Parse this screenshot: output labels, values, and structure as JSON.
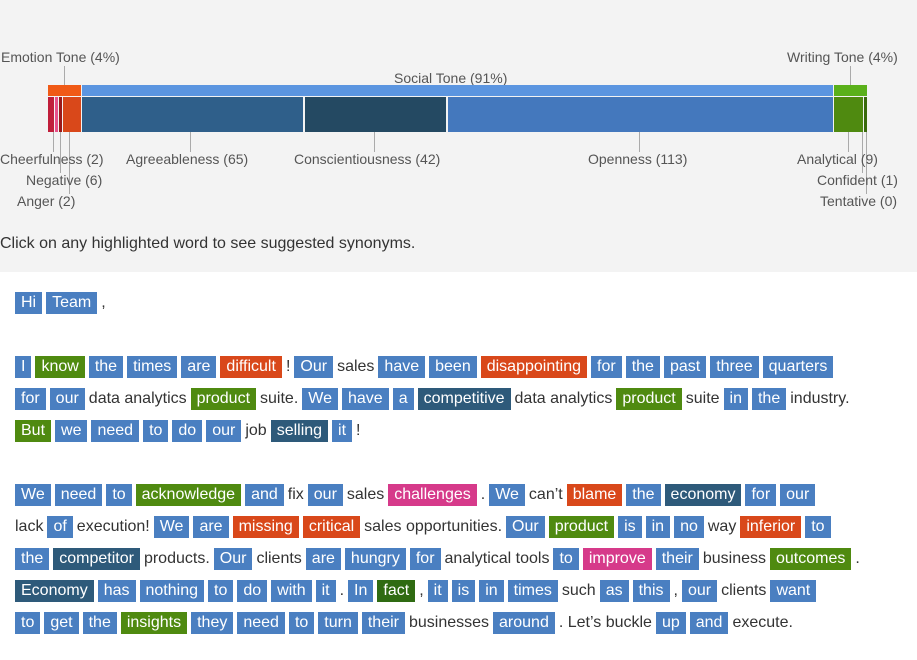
{
  "chart_data": {
    "type": "bar",
    "groups": [
      {
        "name": "Emotion Tone (4%)",
        "items": [
          {
            "label": "Cheerfulness (2)",
            "value": 2,
            "color": "#c01e3a"
          },
          {
            "label": "Negative (6)",
            "value": 6,
            "color": "#e8508a"
          },
          {
            "label": "Anger (2)",
            "value": 2,
            "color": "#9b1a1a"
          }
        ]
      },
      {
        "name": "Social Tone (91%)",
        "items": [
          {
            "label": "Agreeableness (65)",
            "value": 65,
            "color": "#2f5f8a"
          },
          {
            "label": "Conscientiousness (42)",
            "value": 42,
            "color": "#244962"
          },
          {
            "label": "Openness (113)",
            "value": 113,
            "color": "#4478bd"
          }
        ]
      },
      {
        "name": "Writing Tone (4%)",
        "items": [
          {
            "label": "Analytical (9)",
            "value": 9,
            "color": "#4f8a10"
          },
          {
            "label": "Confident (1)",
            "value": 1,
            "color": "#3a6a0c"
          },
          {
            "label": "Tentative (0)",
            "value": 0,
            "color": "#2f5a0a"
          }
        ]
      }
    ]
  },
  "hint": "Click on any highlighted word to see suggested synonyms.",
  "colors": {
    "b": "#4a7fc1",
    "g": "#4f8a10",
    "r": "#d9481a",
    "n": "#2e5a7a",
    "k": "#d63a8a",
    "dg": "#2f6b12"
  },
  "lines": [
    [
      [
        "Hi",
        "b"
      ],
      [
        "Team",
        "b"
      ],
      [
        ",",
        ""
      ]
    ],
    [
      [
        "I",
        "b"
      ],
      [
        "know",
        "g"
      ],
      [
        "the",
        "b"
      ],
      [
        "times",
        "b"
      ],
      [
        "are",
        "b"
      ],
      [
        "difficult",
        "r"
      ],
      [
        "!",
        ""
      ],
      [
        "Our",
        "b"
      ],
      [
        "sales",
        ""
      ],
      [
        "have",
        "b"
      ],
      [
        "been",
        "b"
      ],
      [
        "disappointing",
        "r"
      ],
      [
        "for",
        "b"
      ],
      [
        "the",
        "b"
      ],
      [
        "past",
        "b"
      ],
      [
        "three",
        "b"
      ],
      [
        "quarters",
        "b"
      ]
    ],
    [
      [
        "for",
        "b"
      ],
      [
        "our",
        "b"
      ],
      [
        "data analytics",
        ""
      ],
      [
        "product",
        "g"
      ],
      [
        "suite.",
        ""
      ],
      [
        "We",
        "b"
      ],
      [
        "have",
        "b"
      ],
      [
        "a",
        "b"
      ],
      [
        "competitive",
        "n"
      ],
      [
        "data analytics",
        ""
      ],
      [
        "product",
        "g"
      ],
      [
        "suite",
        ""
      ],
      [
        "in",
        "b"
      ],
      [
        "the",
        "b"
      ],
      [
        "industry.",
        ""
      ]
    ],
    [
      [
        "But",
        "g"
      ],
      [
        "we",
        "b"
      ],
      [
        "need",
        "b"
      ],
      [
        "to",
        "b"
      ],
      [
        "do",
        "b"
      ],
      [
        "our",
        "b"
      ],
      [
        "job",
        ""
      ],
      [
        "selling",
        "n"
      ],
      [
        "it",
        "b"
      ],
      [
        "!",
        ""
      ]
    ],
    [
      [
        "We",
        "b"
      ],
      [
        "need",
        "b"
      ],
      [
        "to",
        "b"
      ],
      [
        "acknowledge",
        "g"
      ],
      [
        "and",
        "b"
      ],
      [
        "fix",
        ""
      ],
      [
        "our",
        "b"
      ],
      [
        "sales",
        ""
      ],
      [
        "challenges",
        "k"
      ],
      [
        ".",
        ""
      ],
      [
        "We",
        "b"
      ],
      [
        "can’t",
        ""
      ],
      [
        "blame",
        "r"
      ],
      [
        "the",
        "b"
      ],
      [
        "economy",
        "n"
      ],
      [
        "for",
        "b"
      ],
      [
        "our",
        "b"
      ]
    ],
    [
      [
        "lack",
        ""
      ],
      [
        "of",
        "b"
      ],
      [
        "execution!",
        ""
      ],
      [
        "We",
        "b"
      ],
      [
        "are",
        "b"
      ],
      [
        "missing",
        "r"
      ],
      [
        "critical",
        "r"
      ],
      [
        "sales opportunities.",
        ""
      ],
      [
        "Our",
        "b"
      ],
      [
        "product",
        "g"
      ],
      [
        "is",
        "b"
      ],
      [
        "in",
        "b"
      ],
      [
        "no",
        "b"
      ],
      [
        "way",
        ""
      ],
      [
        "inferior",
        "r"
      ],
      [
        "to",
        "b"
      ]
    ],
    [
      [
        "the",
        "b"
      ],
      [
        "competitor",
        "n"
      ],
      [
        "products.",
        ""
      ],
      [
        "Our",
        "b"
      ],
      [
        "clients",
        ""
      ],
      [
        "are",
        "b"
      ],
      [
        "hungry",
        "b"
      ],
      [
        "for",
        "b"
      ],
      [
        "analytical tools",
        ""
      ],
      [
        "to",
        "b"
      ],
      [
        "improve",
        "k"
      ],
      [
        "their",
        "b"
      ],
      [
        "business",
        ""
      ],
      [
        "outcomes",
        "g"
      ],
      [
        ".",
        ""
      ]
    ],
    [
      [
        "Economy",
        "n"
      ],
      [
        "has",
        "b"
      ],
      [
        "nothing",
        "b"
      ],
      [
        "to",
        "b"
      ],
      [
        "do",
        "b"
      ],
      [
        "with",
        "b"
      ],
      [
        "it",
        "b"
      ],
      [
        ".",
        ""
      ],
      [
        "In",
        "b"
      ],
      [
        "fact",
        "dg"
      ],
      [
        ",",
        ""
      ],
      [
        "it",
        "b"
      ],
      [
        "is",
        "b"
      ],
      [
        "in",
        "b"
      ],
      [
        "times",
        "b"
      ],
      [
        "such",
        ""
      ],
      [
        "as",
        "b"
      ],
      [
        "this",
        "b"
      ],
      [
        ",",
        ""
      ],
      [
        "our",
        "b"
      ],
      [
        "clients",
        ""
      ],
      [
        "want",
        "b"
      ]
    ],
    [
      [
        "to",
        "b"
      ],
      [
        "get",
        "b"
      ],
      [
        "the",
        "b"
      ],
      [
        "insights",
        "g"
      ],
      [
        "they",
        "b"
      ],
      [
        "need",
        "b"
      ],
      [
        "to",
        "b"
      ],
      [
        "turn",
        "b"
      ],
      [
        "their",
        "b"
      ],
      [
        "businesses",
        ""
      ],
      [
        "around",
        "b"
      ],
      [
        ". Let’s buckle",
        ""
      ],
      [
        "up",
        "b"
      ],
      [
        "and",
        "b"
      ],
      [
        "execute.",
        ""
      ]
    ]
  ]
}
